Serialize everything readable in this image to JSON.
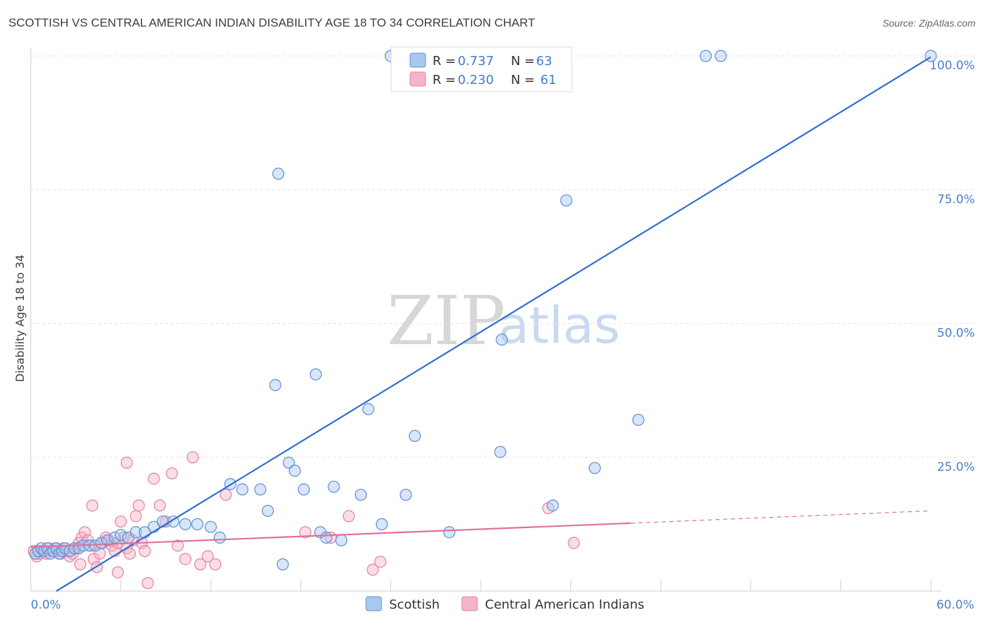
{
  "title": "SCOTTISH VS CENTRAL AMERICAN INDIAN DISABILITY AGE 18 TO 34 CORRELATION CHART",
  "source": "Source: ZipAtlas.com",
  "watermark": {
    "zip": "ZIP",
    "atlas": "atlas"
  },
  "colors": {
    "scottish_fill": "#a9c8ef",
    "scottish_stroke": "#5b8fd6",
    "scottish_line": "#2e6fd0",
    "cai_fill": "#f5b5c8",
    "cai_stroke": "#e67fa0",
    "cai_line": "#e0709a",
    "grid": "#e2e2e2",
    "tick_text": "#4a7fcb"
  },
  "legend": {
    "rows": [
      {
        "r_label": "R =",
        "r_value": "0.737",
        "n_label": "N =",
        "n_value": "63"
      },
      {
        "r_label": "R =",
        "r_value": "0.230",
        "n_label": "N =",
        "n_value": "61"
      }
    ],
    "bottom": [
      "Scottish",
      "Central American Indians"
    ]
  },
  "chart_data": {
    "type": "scatter",
    "title": "SCOTTISH VS CENTRAL AMERICAN INDIAN DISABILITY AGE 18 TO 34 CORRELATION CHART",
    "xlabel": "",
    "ylabel": "Disability Age 18 to 34",
    "xlim": [
      0,
      60
    ],
    "ylim": [
      0,
      102
    ],
    "x_tick_labels": [
      "0.0%",
      "60.0%"
    ],
    "y_ticks": [
      25,
      50,
      75,
      100
    ],
    "y_tick_labels": [
      "25.0%",
      "50.0%",
      "75.0%",
      "100.0%"
    ],
    "grid": true,
    "legend_position": "top-center",
    "series": [
      {
        "name": "Scottish",
        "r": 0.737,
        "n": 63,
        "trend": {
          "x": [
            1.7,
            60
          ],
          "y": [
            0,
            99.8
          ]
        },
        "points": [
          [
            0.3,
            7
          ],
          [
            0.5,
            7.5
          ],
          [
            0.7,
            8
          ],
          [
            0.9,
            7.5
          ],
          [
            1.1,
            8
          ],
          [
            1.3,
            7
          ],
          [
            1.5,
            7.5
          ],
          [
            1.7,
            8
          ],
          [
            1.9,
            7
          ],
          [
            2.1,
            7.5
          ],
          [
            2.3,
            8
          ],
          [
            2.6,
            7.5
          ],
          [
            2.9,
            8
          ],
          [
            3.2,
            8
          ],
          [
            3.5,
            8.5
          ],
          [
            3.9,
            8.5
          ],
          [
            4.3,
            8.5
          ],
          [
            4.7,
            9
          ],
          [
            5.1,
            9.5
          ],
          [
            5.6,
            10
          ],
          [
            6.0,
            10.5
          ],
          [
            6.5,
            10
          ],
          [
            7.0,
            11
          ],
          [
            7.6,
            11
          ],
          [
            8.2,
            12
          ],
          [
            8.8,
            13
          ],
          [
            9.5,
            13
          ],
          [
            10.3,
            12.5
          ],
          [
            11.1,
            12.5
          ],
          [
            12.0,
            12
          ],
          [
            12.6,
            10
          ],
          [
            13.3,
            20
          ],
          [
            14.1,
            19
          ],
          [
            15.3,
            19
          ],
          [
            15.8,
            15
          ],
          [
            16.3,
            38.5
          ],
          [
            16.8,
            5
          ],
          [
            17.2,
            24
          ],
          [
            17.6,
            22.5
          ],
          [
            18.2,
            19
          ],
          [
            19.3,
            11
          ],
          [
            19.7,
            10
          ],
          [
            20.2,
            19.5
          ],
          [
            20.7,
            9.5
          ],
          [
            22.0,
            18
          ],
          [
            23.4,
            12.5
          ],
          [
            25.0,
            18
          ],
          [
            25.6,
            29
          ],
          [
            27.9,
            11
          ],
          [
            31.3,
            26
          ],
          [
            31.4,
            47
          ],
          [
            34.8,
            16
          ],
          [
            35.7,
            73
          ],
          [
            37.6,
            23
          ],
          [
            40.5,
            32
          ],
          [
            16.5,
            78
          ],
          [
            19.0,
            40.5
          ],
          [
            22.5,
            34
          ],
          [
            24.0,
            100
          ],
          [
            27.0,
            100
          ],
          [
            45.0,
            100
          ],
          [
            46.0,
            100
          ],
          [
            60.0,
            100
          ]
        ]
      },
      {
        "name": "Central American Indians",
        "r": 0.23,
        "n": 61,
        "trend": {
          "x": [
            0,
            40
          ],
          "y": [
            8.2,
            12.7
          ],
          "dashed_to": {
            "x": 60,
            "y": 15
          }
        },
        "points": [
          [
            0.2,
            7.5
          ],
          [
            0.4,
            6.5
          ],
          [
            0.6,
            7
          ],
          [
            0.8,
            7.5
          ],
          [
            1.0,
            7
          ],
          [
            1.2,
            8
          ],
          [
            1.4,
            7.5
          ],
          [
            1.6,
            8
          ],
          [
            1.8,
            7.5
          ],
          [
            2.0,
            7
          ],
          [
            2.2,
            8
          ],
          [
            2.4,
            7.5
          ],
          [
            2.6,
            6.5
          ],
          [
            2.8,
            7
          ],
          [
            3.0,
            8
          ],
          [
            3.2,
            9
          ],
          [
            3.4,
            10
          ],
          [
            3.6,
            11
          ],
          [
            3.8,
            9.5
          ],
          [
            4.0,
            8.5
          ],
          [
            4.2,
            6
          ],
          [
            4.4,
            4.5
          ],
          [
            4.6,
            7
          ],
          [
            4.8,
            9
          ],
          [
            5.0,
            10
          ],
          [
            5.2,
            9.5
          ],
          [
            5.4,
            8.5
          ],
          [
            5.6,
            7.5
          ],
          [
            5.8,
            9
          ],
          [
            6.0,
            13
          ],
          [
            6.2,
            10
          ],
          [
            6.4,
            8
          ],
          [
            6.6,
            7
          ],
          [
            6.8,
            9.5
          ],
          [
            7.0,
            14
          ],
          [
            7.2,
            16
          ],
          [
            7.4,
            9
          ],
          [
            7.6,
            7.5
          ],
          [
            7.8,
            1.5
          ],
          [
            8.2,
            21
          ],
          [
            8.6,
            16
          ],
          [
            9.0,
            13
          ],
          [
            9.4,
            22
          ],
          [
            9.8,
            8.5
          ],
          [
            10.3,
            6
          ],
          [
            10.8,
            25
          ],
          [
            11.3,
            5
          ],
          [
            11.8,
            6.5
          ],
          [
            12.3,
            5
          ],
          [
            13.0,
            18
          ],
          [
            5.8,
            3.5
          ],
          [
            6.4,
            24
          ],
          [
            4.1,
            16
          ],
          [
            3.3,
            5
          ],
          [
            18.3,
            11
          ],
          [
            20.0,
            10
          ],
          [
            21.2,
            14
          ],
          [
            22.8,
            4
          ],
          [
            23.3,
            5.5
          ],
          [
            34.5,
            15.5
          ],
          [
            36.2,
            9
          ]
        ]
      }
    ]
  }
}
